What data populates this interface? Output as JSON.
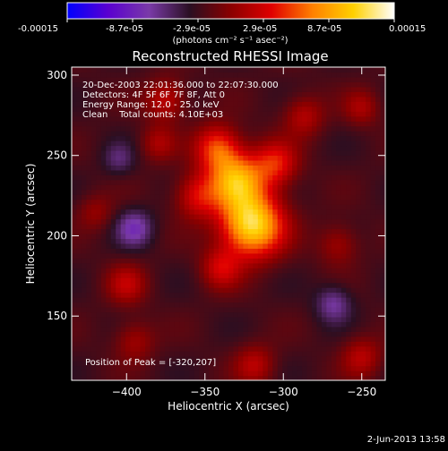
{
  "colorbar": {
    "tick_labels": [
      "-0.00015",
      "-8.7e-05",
      "-2.9e-05",
      "2.9e-05",
      "8.7e-05",
      "0.00015"
    ],
    "units_label": "(photons cm⁻² s⁻¹ asec⁻²)"
  },
  "chart_data": {
    "type": "heatmap",
    "title": "Reconstructed RHESSI Image",
    "xlabel": "Heliocentric X (arcsec)",
    "ylabel": "Heliocentric Y (arcsec)",
    "xlim": [
      -435,
      -235
    ],
    "ylim": [
      110,
      305
    ],
    "x_ticks": [
      -400,
      -350,
      -300,
      -250
    ],
    "y_ticks": [
      150,
      200,
      250,
      300
    ],
    "x_tick_labels": [
      "−400",
      "−350",
      "−300",
      "−250"
    ],
    "y_tick_labels": [
      "150",
      "200",
      "250",
      "300"
    ],
    "colorbar_range": [
      -0.00015,
      0.00015
    ],
    "sources": [
      {
        "x": -320,
        "y": 207,
        "intensity": 1.0,
        "sigma": 14
      },
      {
        "x": -330,
        "y": 235,
        "intensity": 0.75,
        "sigma": 12
      },
      {
        "x": -342,
        "y": 255,
        "intensity": 0.55,
        "sigma": 10
      },
      {
        "x": -305,
        "y": 245,
        "intensity": 0.45,
        "sigma": 10
      },
      {
        "x": -355,
        "y": 225,
        "intensity": 0.4,
        "sigma": 10
      },
      {
        "x": -340,
        "y": 180,
        "intensity": 0.35,
        "sigma": 9
      },
      {
        "x": -375,
        "y": 285,
        "intensity": 0.35,
        "sigma": 9
      },
      {
        "x": -380,
        "y": 258,
        "intensity": 0.25,
        "sigma": 8
      },
      {
        "x": -287,
        "y": 275,
        "intensity": 0.3,
        "sigma": 9
      },
      {
        "x": -400,
        "y": 170,
        "intensity": 0.3,
        "sigma": 9
      },
      {
        "x": -250,
        "y": 280,
        "intensity": 0.25,
        "sigma": 8
      },
      {
        "x": -250,
        "y": 125,
        "intensity": 0.3,
        "sigma": 9
      },
      {
        "x": -318,
        "y": 120,
        "intensity": 0.3,
        "sigma": 9
      },
      {
        "x": -395,
        "y": 135,
        "intensity": 0.25,
        "sigma": 9
      },
      {
        "x": -265,
        "y": 195,
        "intensity": 0.25,
        "sigma": 9
      },
      {
        "x": -420,
        "y": 215,
        "intensity": 0.2,
        "sigma": 8
      },
      {
        "x": -395,
        "y": 205,
        "intensity": -0.35,
        "sigma": 8
      },
      {
        "x": -268,
        "y": 158,
        "intensity": -0.3,
        "sigma": 8
      },
      {
        "x": -405,
        "y": 248,
        "intensity": -0.2,
        "sigma": 7
      }
    ]
  },
  "info": {
    "time_range": "20-Dec-2003 22:01:36.000 to 22:07:30.000",
    "detectors": "Detectors: 4F 5F 6F 7F 8F, Att 0",
    "energy_range": "Energy Range: 12.0 - 25.0 keV",
    "method_counts": "Clean    Total counts: 4.10E+03",
    "peak_position": "Position of Peak = [-320,207]"
  },
  "footer": {
    "date": "2-Jun-2013 13:58"
  },
  "colors": {
    "background": "#000000",
    "text": "#ffffff",
    "colormap": [
      "#0000ff",
      "#5a00d0",
      "#7a3aa8",
      "#2a0f22",
      "#8a0000",
      "#e00000",
      "#ff8000",
      "#ffd000",
      "#ffffff"
    ]
  }
}
